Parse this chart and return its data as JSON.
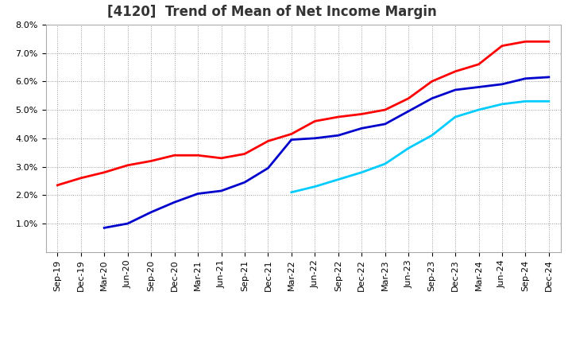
{
  "title": "[4120]  Trend of Mean of Net Income Margin",
  "xlabels": [
    "Sep-19",
    "Dec-19",
    "Mar-20",
    "Jun-20",
    "Sep-20",
    "Dec-20",
    "Mar-21",
    "Jun-21",
    "Sep-21",
    "Dec-21",
    "Mar-22",
    "Jun-22",
    "Sep-22",
    "Dec-22",
    "Mar-23",
    "Jun-23",
    "Sep-23",
    "Dec-23",
    "Mar-24",
    "Jun-24",
    "Sep-24",
    "Dec-24"
  ],
  "ylim": [
    0.0,
    0.08
  ],
  "yticks": [
    0.01,
    0.02,
    0.03,
    0.04,
    0.05,
    0.06,
    0.07,
    0.08
  ],
  "series": {
    "3 Years": {
      "color": "#FF0000",
      "data_x": [
        0,
        1,
        2,
        3,
        4,
        5,
        6,
        7,
        8,
        9,
        10,
        11,
        12,
        13,
        14,
        15,
        16,
        17,
        18,
        19,
        20,
        21
      ],
      "data_y": [
        0.0235,
        0.026,
        0.028,
        0.0305,
        0.032,
        0.034,
        0.034,
        0.033,
        0.0345,
        0.039,
        0.0415,
        0.046,
        0.0475,
        0.0485,
        0.05,
        0.054,
        0.06,
        0.0635,
        0.066,
        0.0725,
        0.074,
        0.074
      ]
    },
    "5 Years": {
      "color": "#0000CC",
      "data_x": [
        2,
        3,
        4,
        5,
        6,
        7,
        8,
        9,
        10,
        11,
        12,
        13,
        14,
        15,
        16,
        17,
        18,
        19,
        20,
        21
      ],
      "data_y": [
        0.0085,
        0.01,
        0.014,
        0.0175,
        0.0205,
        0.0215,
        0.0245,
        0.0295,
        0.0395,
        0.04,
        0.041,
        0.0435,
        0.045,
        0.0495,
        0.054,
        0.057,
        0.058,
        0.059,
        0.061,
        0.0615
      ]
    },
    "7 Years": {
      "color": "#00CCFF",
      "data_x": [
        10,
        11,
        12,
        13,
        14,
        15,
        16,
        17,
        18,
        19,
        20,
        21
      ],
      "data_y": [
        0.021,
        0.023,
        0.0255,
        0.028,
        0.031,
        0.0365,
        0.041,
        0.0475,
        0.05,
        0.052,
        0.053,
        0.053
      ]
    },
    "10 Years": {
      "color": "#006600",
      "data_x": [],
      "data_y": []
    }
  },
  "background_color": "#ffffff",
  "plot_bg_color": "#ffffff",
  "grid_color": "#aaaaaa",
  "title_fontsize": 12,
  "legend_fontsize": 9,
  "tick_fontsize": 8
}
